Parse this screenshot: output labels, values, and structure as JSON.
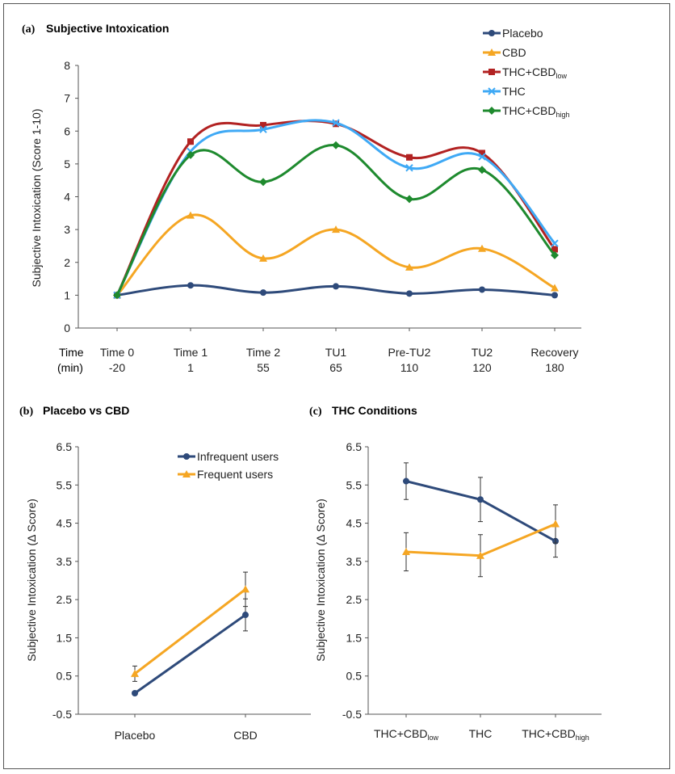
{
  "chart_data": [
    {
      "type": "line",
      "panel_label": "(a)",
      "title": "Subjective Intoxication",
      "ylabel": "Subjective Intoxication  (Score 1-10)",
      "ylim": [
        0,
        8
      ],
      "yticks": [
        "0",
        "1",
        "2",
        "3",
        "4",
        "5",
        "6",
        "7",
        "8"
      ],
      "row_header_1": "Time",
      "row_header_2": "(min)",
      "categories": [
        "Time 0",
        "Time 1",
        "Time 2",
        "TU1",
        "Pre-TU2",
        "TU2",
        "Recovery"
      ],
      "minutes": [
        "-20",
        "1",
        "55",
        "65",
        "110",
        "120",
        "180"
      ],
      "legend_position": "top-right",
      "series": [
        {
          "name": "Placebo",
          "name_sub": "",
          "color": "#2e4a7a",
          "marker": "circle",
          "values": [
            1.0,
            1.3,
            1.08,
            1.27,
            1.05,
            1.17,
            1.0
          ]
        },
        {
          "name": "CBD",
          "name_sub": "",
          "color": "#f5a623",
          "marker": "triangle",
          "values": [
            1.0,
            3.43,
            2.12,
            3.0,
            1.85,
            2.42,
            1.22
          ]
        },
        {
          "name": "THC+CBD",
          "name_sub": "low",
          "color": "#b22222",
          "marker": "square",
          "values": [
            1.0,
            5.68,
            6.18,
            6.22,
            5.2,
            5.33,
            2.4
          ]
        },
        {
          "name": "THC",
          "name_sub": "",
          "color": "#3fa9f5",
          "marker": "x",
          "values": [
            1.0,
            5.38,
            6.05,
            6.25,
            4.88,
            5.22,
            2.58
          ]
        },
        {
          "name": "THC+CBD",
          "name_sub": "high",
          "color": "#1e8a2e",
          "marker": "diamond",
          "values": [
            1.0,
            5.27,
            4.45,
            5.57,
            3.93,
            4.82,
            2.22
          ]
        }
      ]
    },
    {
      "type": "line",
      "panel_label": "(b)",
      "title": "Placebo vs CBD",
      "ylabel": "Subjective Intoxication (Δ Score)",
      "ylim": [
        -0.5,
        6.5
      ],
      "yticks": [
        "-0.5",
        "0.5",
        "1.5",
        "2.5",
        "3.5",
        "4.5",
        "5.5",
        "6.5"
      ],
      "categories": [
        "Placebo",
        "CBD"
      ],
      "legend_position": "top",
      "series": [
        {
          "name": "Infrequent users",
          "color": "#2e4a7a",
          "marker": "circle",
          "values": [
            0.05,
            2.1
          ],
          "error": [
            0.0,
            0.42
          ]
        },
        {
          "name": "Frequent users",
          "color": "#f5a623",
          "marker": "triangle",
          "values": [
            0.56,
            2.77
          ],
          "error": [
            0.2,
            0.45
          ]
        }
      ]
    },
    {
      "type": "line",
      "panel_label": "(c)",
      "title": "THC Conditions",
      "ylabel": "Subjective Intoxication (Δ Score)",
      "ylim": [
        -0.5,
        6.5
      ],
      "yticks": [
        "-0.5",
        "0.5",
        "1.5",
        "2.5",
        "3.5",
        "4.5",
        "5.5",
        "6.5"
      ],
      "categories": [
        {
          "label": "THC+CBD",
          "sub": "low"
        },
        {
          "label": "THC",
          "sub": ""
        },
        {
          "label": "THC+CBD",
          "sub": "high"
        }
      ],
      "series": [
        {
          "name": "Infrequent users",
          "color": "#2e4a7a",
          "marker": "circle",
          "values": [
            5.6,
            5.12,
            4.03
          ],
          "error": [
            0.48,
            0.58,
            0.42
          ]
        },
        {
          "name": "Frequent users",
          "color": "#f5a623",
          "marker": "triangle",
          "values": [
            3.75,
            3.65,
            4.48
          ],
          "error": [
            0.5,
            0.55,
            0.5
          ]
        }
      ]
    }
  ]
}
